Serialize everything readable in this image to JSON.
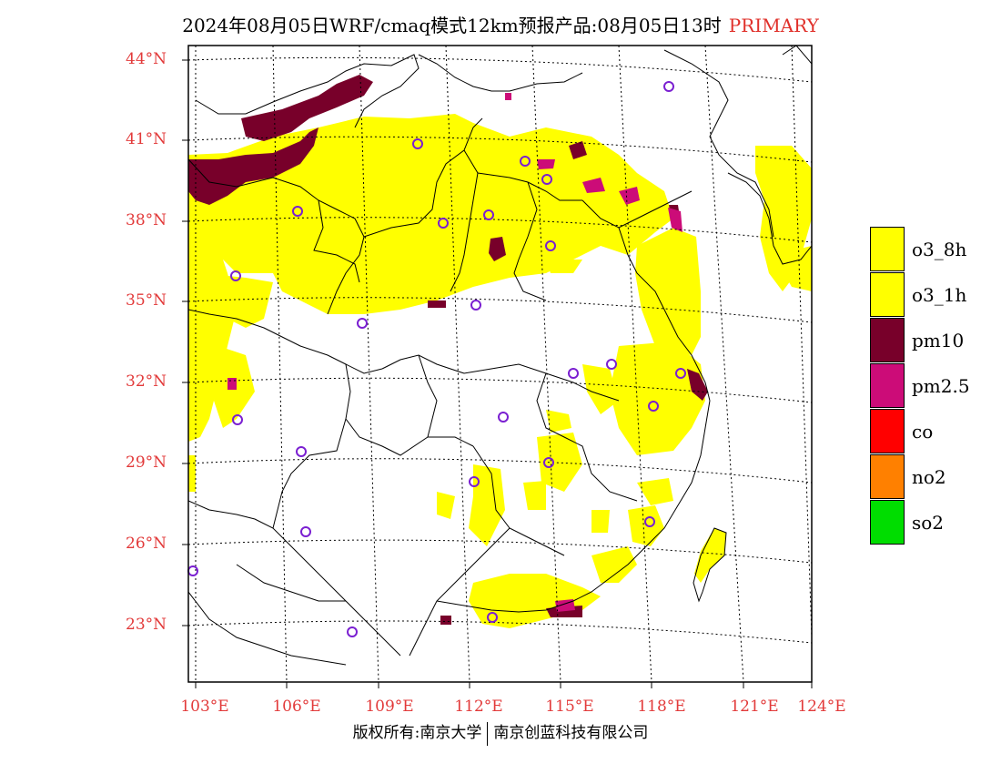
{
  "title": {
    "text": "2024年08月05日WRF/cmaq模式12km预报产品:08月05日13时",
    "tag": "PRIMARY"
  },
  "axes": {
    "lat_labels": [
      "44°N",
      "41°N",
      "38°N",
      "35°N",
      "32°N",
      "29°N",
      "26°N",
      "23°N"
    ],
    "lon_labels": [
      "103°E",
      "106°E",
      "109°E",
      "112°E",
      "115°E",
      "118°E",
      "121°E",
      "124°E"
    ]
  },
  "legend": [
    {
      "label": "o3_8h",
      "color": "#ffff00"
    },
    {
      "label": "o3_1h",
      "color": "#ffff00"
    },
    {
      "label": "pm10",
      "color": "#78002a"
    },
    {
      "label": "pm2.5",
      "color": "#cc0c78"
    },
    {
      "label": "co",
      "color": "#ff0000"
    },
    {
      "label": "no2",
      "color": "#ff8000"
    },
    {
      "label": "so2",
      "color": "#00dd00"
    }
  ],
  "copyright": {
    "left": "版权所有:南京大学",
    "right": "南京创蓝科技有限公司"
  },
  "colors": {
    "o3": "#ffff00",
    "pm10": "#78002a",
    "pm25": "#cc0c78",
    "station": "#7a1fd1",
    "axis_label": "#e23a3a"
  }
}
